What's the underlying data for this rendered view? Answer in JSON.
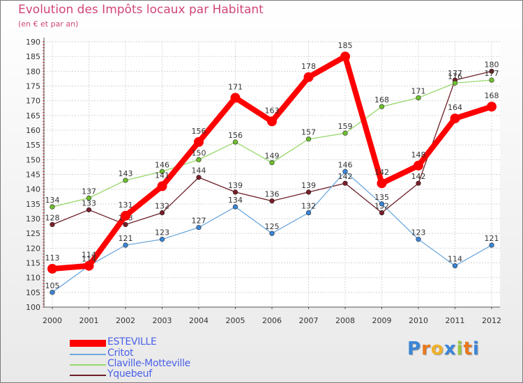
{
  "header": {
    "title": "Evolution des Impôts locaux par Habitant",
    "subtitle": "(en € et par an)"
  },
  "logo": {
    "text": "Proxiti",
    "letters": [
      "P",
      "r",
      "o",
      "x",
      "i",
      "t",
      "i"
    ],
    "colors": [
      "#3a86d8",
      "#e8781e",
      "#f2b12a",
      "#3a86d8",
      "#9ac840",
      "#e8781e",
      "#3a86d8"
    ]
  },
  "chart_data": {
    "type": "line",
    "title": "Evolution des Impôts locaux par Habitant",
    "subtitle": "(en € et par an)",
    "xlabel": "",
    "ylabel": "",
    "ylim": [
      100,
      190
    ],
    "y_ticks": [
      "100",
      "105",
      "110",
      "115",
      "120",
      "125",
      "130",
      "135",
      "140",
      "145",
      "150",
      "155",
      "160",
      "165",
      "170",
      "175",
      "180",
      "185",
      "190"
    ],
    "x": [
      "2000",
      "2001",
      "2002",
      "2003",
      "2004",
      "2005",
      "2006",
      "2007",
      "2008",
      "2009",
      "2010",
      "2011",
      "2012"
    ],
    "grid": true,
    "legend_position": "bottom-left",
    "series": [
      {
        "name": "Yquebeuf",
        "color": "#6b1e26",
        "dot": "#7a1f28",
        "emphasis": false,
        "values": [
          128,
          133,
          128,
          132,
          144,
          139,
          136,
          139,
          142,
          132,
          142,
          177,
          180
        ]
      },
      {
        "name": "Claville-Motteville",
        "color": "#96d86a",
        "dot": "#6fc02e",
        "emphasis": false,
        "values": [
          134,
          137,
          143,
          146,
          150,
          156,
          149,
          157,
          159,
          168,
          171,
          176,
          177
        ]
      },
      {
        "name": "Critot",
        "color": "#6fa8dc",
        "dot": "#3a86d8",
        "emphasis": false,
        "values": [
          105,
          114,
          121,
          123,
          127,
          134,
          125,
          132,
          146,
          135,
          123,
          114,
          121
        ]
      },
      {
        "name": "ESTEVILLE",
        "color": "#ff0000",
        "dot": "#ff0000",
        "emphasis": true,
        "values": [
          113,
          114,
          131,
          141,
          156,
          171,
          163,
          178,
          185,
          142,
          148,
          164,
          168
        ]
      }
    ],
    "legend_order": [
      "ESTEVILLE",
      "Critot",
      "Claville-Motteville",
      "Yquebeuf"
    ]
  }
}
